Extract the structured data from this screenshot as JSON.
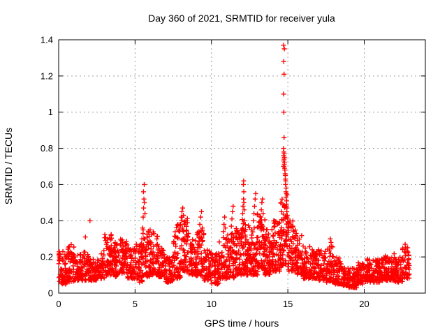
{
  "chart_data": {
    "type": "scatter",
    "title": "Day 360 of 2021, SRMTID for receiver yula",
    "xlabel": "GPS time / hours",
    "ylabel": "SRMTID / TECUs",
    "xlim": [
      0,
      24
    ],
    "ylim": [
      0,
      1.4
    ],
    "xticks": [
      0,
      5,
      10,
      15,
      20
    ],
    "yticks": [
      0,
      0.2,
      0.4,
      0.6,
      0.8,
      1,
      1.2,
      1.4
    ],
    "grid": {
      "style": "dashed",
      "color": "#9e9e9e",
      "on": true
    },
    "legend": "none",
    "marker": {
      "shape": "plus",
      "color": "#ff0000",
      "size": 7
    },
    "background": "#ffffff",
    "border_color": "#000000",
    "seed": 20213600,
    "series": [
      {
        "name": "SRMTID",
        "note": "dense 30s-cadence scatter; bins = [hour_start, hour_end, n_points, value_low, value_high] envelope of the band; points = individually visible spike/outlier samples [hour, value]",
        "bins": [
          [
            0.0,
            0.5,
            56,
            0.05,
            0.24
          ],
          [
            0.5,
            1.0,
            56,
            0.06,
            0.27
          ],
          [
            1.0,
            1.5,
            52,
            0.07,
            0.22
          ],
          [
            1.5,
            2.0,
            52,
            0.07,
            0.23
          ],
          [
            2.0,
            2.5,
            50,
            0.07,
            0.2
          ],
          [
            2.5,
            3.0,
            52,
            0.08,
            0.24
          ],
          [
            3.0,
            3.5,
            62,
            0.1,
            0.33
          ],
          [
            3.5,
            4.0,
            56,
            0.09,
            0.28
          ],
          [
            4.0,
            4.5,
            56,
            0.11,
            0.3
          ],
          [
            4.5,
            5.0,
            52,
            0.08,
            0.25
          ],
          [
            5.0,
            5.5,
            52,
            0.06,
            0.28
          ],
          [
            5.5,
            6.0,
            54,
            0.09,
            0.35
          ],
          [
            6.0,
            6.5,
            54,
            0.1,
            0.35
          ],
          [
            6.5,
            7.0,
            50,
            0.09,
            0.27
          ],
          [
            7.0,
            7.5,
            48,
            0.06,
            0.2
          ],
          [
            7.5,
            8.0,
            54,
            0.08,
            0.38
          ],
          [
            8.0,
            8.5,
            58,
            0.12,
            0.42
          ],
          [
            8.5,
            9.0,
            52,
            0.1,
            0.3
          ],
          [
            9.0,
            9.5,
            54,
            0.09,
            0.35
          ],
          [
            9.5,
            10.0,
            52,
            0.07,
            0.24
          ],
          [
            10.0,
            10.5,
            52,
            0.05,
            0.22
          ],
          [
            10.5,
            11.0,
            54,
            0.08,
            0.32
          ],
          [
            11.0,
            11.5,
            56,
            0.08,
            0.34
          ],
          [
            11.5,
            12.0,
            58,
            0.1,
            0.36
          ],
          [
            12.0,
            12.5,
            66,
            0.1,
            0.42
          ],
          [
            12.5,
            13.0,
            62,
            0.1,
            0.4
          ],
          [
            13.0,
            13.5,
            66,
            0.12,
            0.44
          ],
          [
            13.5,
            14.0,
            62,
            0.1,
            0.36
          ],
          [
            14.0,
            14.5,
            64,
            0.12,
            0.4
          ],
          [
            14.5,
            15.0,
            72,
            0.15,
            0.55
          ],
          [
            15.0,
            15.5,
            60,
            0.12,
            0.4
          ],
          [
            15.5,
            16.0,
            54,
            0.1,
            0.32
          ],
          [
            16.0,
            16.5,
            54,
            0.08,
            0.26
          ],
          [
            16.5,
            17.0,
            52,
            0.08,
            0.24
          ],
          [
            17.0,
            17.5,
            50,
            0.07,
            0.24
          ],
          [
            17.5,
            18.0,
            52,
            0.06,
            0.27
          ],
          [
            18.0,
            18.5,
            52,
            0.05,
            0.2
          ],
          [
            18.5,
            19.0,
            54,
            0.04,
            0.14
          ],
          [
            19.0,
            19.5,
            54,
            0.03,
            0.14
          ],
          [
            19.5,
            20.0,
            52,
            0.05,
            0.17
          ],
          [
            20.0,
            20.5,
            52,
            0.06,
            0.19
          ],
          [
            20.5,
            21.0,
            50,
            0.06,
            0.19
          ],
          [
            21.0,
            21.5,
            52,
            0.07,
            0.21
          ],
          [
            21.5,
            22.0,
            52,
            0.07,
            0.22
          ],
          [
            22.0,
            22.5,
            52,
            0.06,
            0.2
          ],
          [
            22.5,
            22.95,
            46,
            0.08,
            0.26
          ]
        ],
        "points": [
          [
            1.75,
            0.31
          ],
          [
            2.05,
            0.4
          ],
          [
            5.45,
            0.3
          ],
          [
            5.5,
            0.36
          ],
          [
            5.53,
            0.42
          ],
          [
            5.56,
            0.47
          ],
          [
            5.58,
            0.52
          ],
          [
            5.55,
            0.56
          ],
          [
            5.6,
            0.6
          ],
          [
            5.62,
            0.5
          ],
          [
            5.65,
            0.44
          ],
          [
            5.52,
            0.33
          ],
          [
            7.92,
            0.34
          ],
          [
            7.97,
            0.38
          ],
          [
            8.02,
            0.42
          ],
          [
            8.07,
            0.45
          ],
          [
            8.12,
            0.47
          ],
          [
            8.05,
            0.4
          ],
          [
            8.17,
            0.43
          ],
          [
            8.1,
            0.36
          ],
          [
            8.22,
            0.38
          ],
          [
            9.18,
            0.34
          ],
          [
            9.24,
            0.38
          ],
          [
            9.3,
            0.42
          ],
          [
            9.35,
            0.45
          ],
          [
            9.28,
            0.3
          ],
          [
            9.4,
            0.36
          ],
          [
            10.78,
            0.34
          ],
          [
            10.82,
            0.38
          ],
          [
            10.86,
            0.42
          ],
          [
            10.9,
            0.36
          ],
          [
            11.3,
            0.37
          ],
          [
            11.34,
            0.41
          ],
          [
            11.38,
            0.45
          ],
          [
            11.42,
            0.48
          ],
          [
            11.36,
            0.33
          ],
          [
            12.04,
            0.44
          ],
          [
            12.07,
            0.48
          ],
          [
            12.1,
            0.52
          ],
          [
            12.12,
            0.56
          ],
          [
            12.09,
            0.6
          ],
          [
            12.11,
            0.62
          ],
          [
            12.14,
            0.46
          ],
          [
            12.16,
            0.4
          ],
          [
            12.06,
            0.36
          ],
          [
            12.13,
            0.5
          ],
          [
            12.74,
            0.4
          ],
          [
            12.78,
            0.44
          ],
          [
            12.82,
            0.48
          ],
          [
            12.86,
            0.52
          ],
          [
            12.9,
            0.55
          ],
          [
            12.8,
            0.36
          ],
          [
            13.22,
            0.42
          ],
          [
            13.26,
            0.46
          ],
          [
            13.3,
            0.5
          ],
          [
            13.34,
            0.52
          ],
          [
            13.28,
            0.38
          ],
          [
            13.38,
            0.44
          ],
          [
            13.42,
            0.35
          ],
          [
            14.72,
            1.37
          ],
          [
            14.77,
            1.35
          ],
          [
            14.73,
            1.28
          ],
          [
            14.75,
            1.21
          ],
          [
            14.73,
            1.1
          ],
          [
            14.74,
            1.0
          ],
          [
            14.75,
            0.86
          ],
          [
            14.72,
            0.8
          ],
          [
            14.74,
            0.78
          ],
          [
            14.76,
            0.77
          ],
          [
            14.73,
            0.76
          ],
          [
            14.77,
            0.75
          ],
          [
            14.75,
            0.74
          ],
          [
            14.74,
            0.73
          ],
          [
            14.78,
            0.72
          ],
          [
            14.76,
            0.71
          ],
          [
            14.73,
            0.7
          ],
          [
            14.79,
            0.69
          ],
          [
            14.8,
            0.68
          ],
          [
            14.82,
            0.66
          ],
          [
            14.84,
            0.65
          ],
          [
            14.83,
            0.63
          ],
          [
            14.86,
            0.62
          ],
          [
            14.85,
            0.6
          ],
          [
            14.89,
            0.58
          ],
          [
            14.87,
            0.56
          ],
          [
            14.91,
            0.55
          ],
          [
            14.88,
            0.53
          ],
          [
            14.92,
            0.51
          ],
          [
            14.9,
            0.49
          ],
          [
            14.94,
            0.47
          ],
          [
            14.93,
            0.45
          ],
          [
            14.96,
            0.43
          ],
          [
            14.99,
            0.41
          ],
          [
            15.02,
            0.39
          ],
          [
            15.04,
            0.36
          ],
          [
            15.55,
            0.33
          ],
          [
            15.6,
            0.31
          ],
          [
            15.64,
            0.29
          ],
          [
            17.78,
            0.3
          ],
          [
            17.83,
            0.28
          ],
          [
            22.68,
            0.27
          ],
          [
            22.74,
            0.25
          ]
        ]
      }
    ]
  }
}
